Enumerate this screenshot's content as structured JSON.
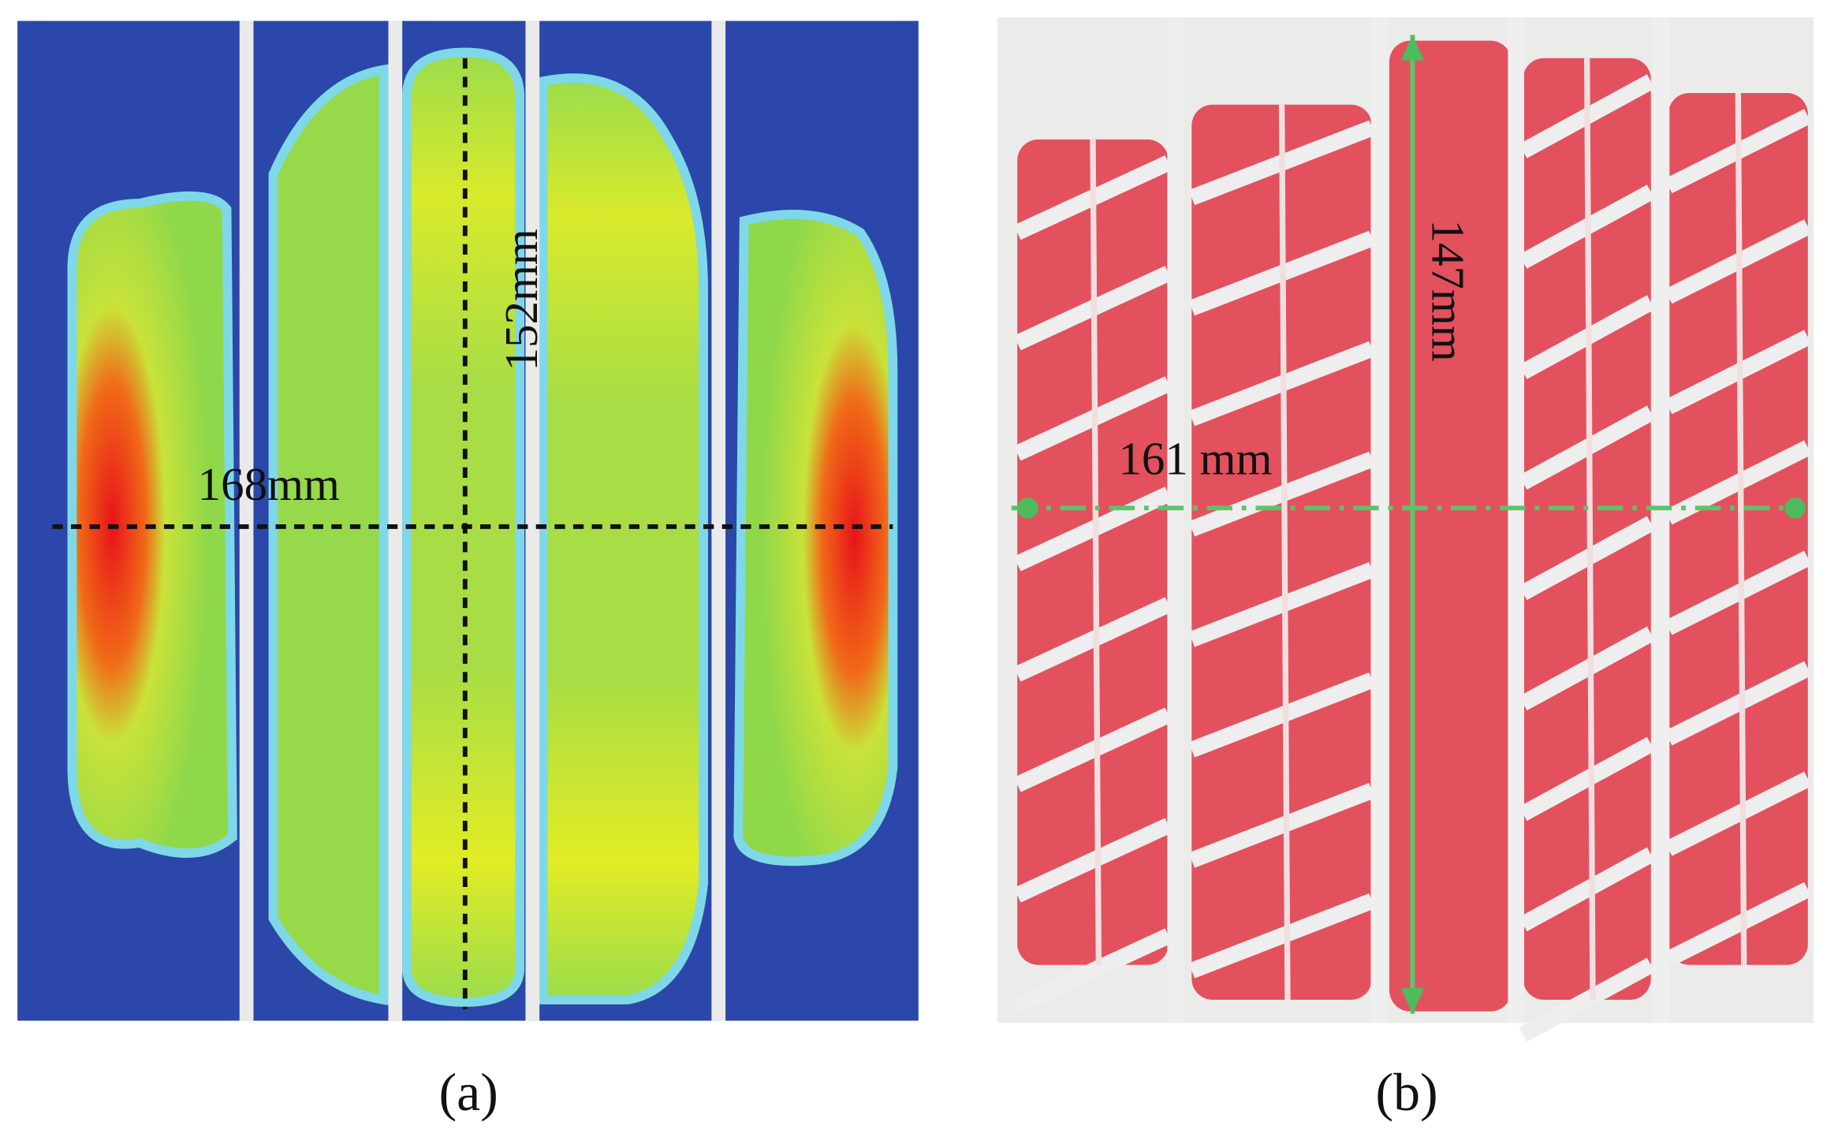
{
  "panels": [
    {
      "label": "(a)",
      "width_label": "168mm",
      "length_label": "152mm"
    },
    {
      "label": "(b)",
      "width_label": "161 mm",
      "length_label": "147mm"
    }
  ]
}
